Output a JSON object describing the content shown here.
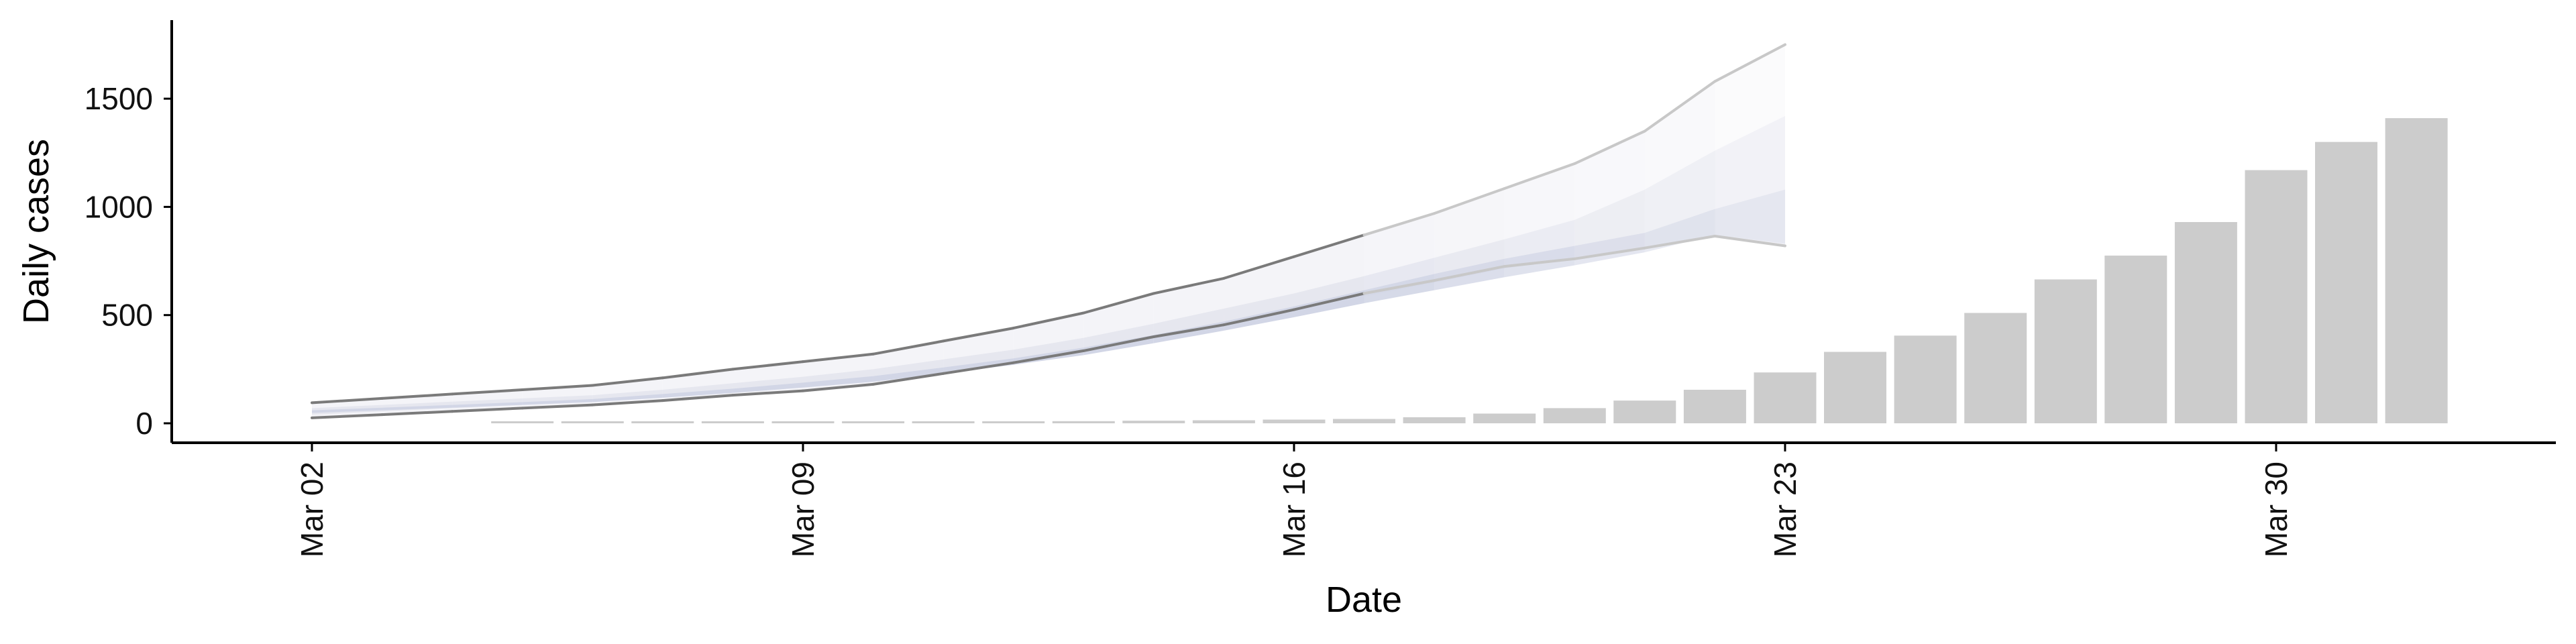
{
  "chart_data": {
    "type": "bar",
    "title": "",
    "xlabel": "Date",
    "ylabel": "Daily cases",
    "x_ticks": [
      "Mar 02",
      "Mar 09",
      "Mar 16",
      "Mar 23",
      "Mar 30"
    ],
    "y_ticks": [
      "0",
      "500",
      "1000",
      "1500"
    ],
    "ylim": [
      -80,
      1850
    ],
    "grid": false,
    "legend": "none",
    "bars": {
      "color": "#cccccc",
      "dates": [
        "Mar 05",
        "Mar 06",
        "Mar 07",
        "Mar 08",
        "Mar 09",
        "Mar 10",
        "Mar 11",
        "Mar 12",
        "Mar 13",
        "Mar 14",
        "Mar 15",
        "Mar 16",
        "Mar 17",
        "Mar 18",
        "Mar 19",
        "Mar 20",
        "Mar 21",
        "Mar 22",
        "Mar 23",
        "Mar 24",
        "Mar 25",
        "Mar 26",
        "Mar 27",
        "Mar 28",
        "Mar 29",
        "Mar 30",
        "Mar 31",
        "Apr 01"
      ],
      "values": [
        1,
        2,
        3,
        4,
        5,
        6,
        7,
        8,
        10,
        12,
        14,
        17,
        20,
        28,
        45,
        70,
        105,
        155,
        235,
        330,
        405,
        510,
        665,
        775,
        930,
        1170,
        1300,
        1410
      ]
    },
    "forecast": {
      "dates": [
        "Mar 02",
        "Mar 03",
        "Mar 04",
        "Mar 05",
        "Mar 06",
        "Mar 07",
        "Mar 08",
        "Mar 09",
        "Mar 10",
        "Mar 11",
        "Mar 12",
        "Mar 13",
        "Mar 14",
        "Mar 15",
        "Mar 16",
        "Mar 17",
        "Mar 18",
        "Mar 19",
        "Mar 20",
        "Mar 21",
        "Mar 22",
        "Mar 23"
      ],
      "outer_upper": [
        95,
        115,
        135,
        155,
        175,
        210,
        250,
        285,
        320,
        380,
        440,
        510,
        600,
        670,
        770,
        870,
        970,
        1085,
        1200,
        1350,
        1580,
        1750
      ],
      "outer_lower": [
        25,
        40,
        55,
        70,
        85,
        105,
        130,
        150,
        180,
        230,
        280,
        335,
        400,
        455,
        525,
        600,
        660,
        725,
        760,
        810,
        865,
        820
      ],
      "inner_upper": [
        70,
        85,
        100,
        115,
        130,
        155,
        185,
        215,
        250,
        295,
        340,
        395,
        460,
        530,
        600,
        680,
        765,
        850,
        940,
        1080,
        1260,
        1420
      ],
      "inner_lower": [
        40,
        55,
        70,
        85,
        100,
        120,
        145,
        170,
        200,
        245,
        290,
        340,
        400,
        455,
        520,
        585,
        650,
        715,
        760,
        810,
        870,
        820
      ],
      "core_upper": [
        60,
        72,
        85,
        98,
        112,
        135,
        160,
        188,
        218,
        258,
        300,
        350,
        408,
        470,
        540,
        615,
        690,
        760,
        820,
        880,
        990,
        1080
      ],
      "core_lower": [
        48,
        60,
        72,
        85,
        98,
        118,
        140,
        165,
        192,
        230,
        270,
        315,
        370,
        428,
        490,
        555,
        615,
        675,
        730,
        790,
        870,
        830
      ],
      "outer_fill": "#f4f4f8",
      "inner_fill": "#e6e7ef",
      "core_fill": "#d2d6e6",
      "outer_line": "#7a7a7a",
      "faded_line": "#c8c8c8"
    }
  }
}
